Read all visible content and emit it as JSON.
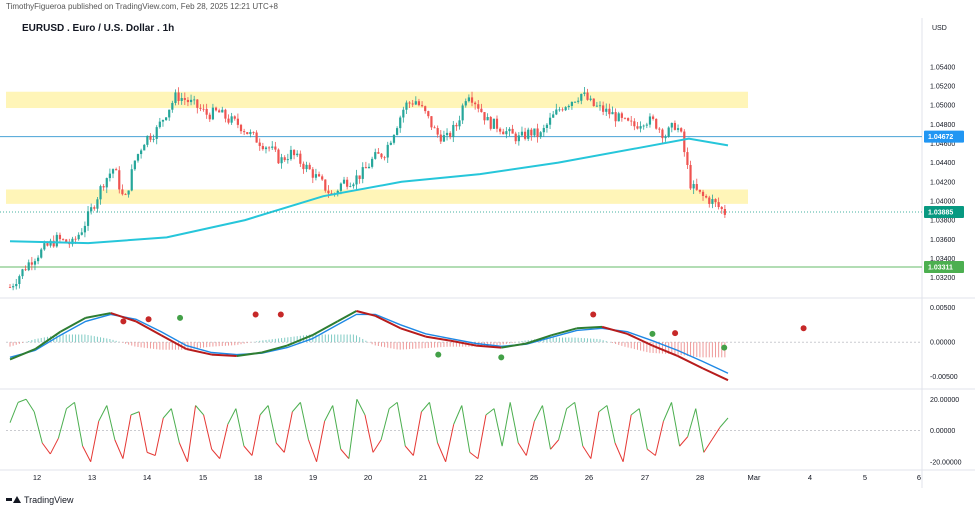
{
  "header": {
    "publisher_line": "TimothyFigueroa published on TradingView.com, Feb 28, 2025 12:21 UTC+8",
    "title": "EURUSD . Euro / U.S. Dollar . 1h"
  },
  "footer": {
    "brand": "TradingView"
  },
  "colors": {
    "up": "#26a69a",
    "down": "#ef5350",
    "zone": "#fff5b8",
    "ma": "#26c6da",
    "hline_top": "#4aa3d6",
    "hline_bottom": "#66bb6a",
    "price_badge": "#089981",
    "level_badge": "#2196f3",
    "support_badge": "#4caf50",
    "macd_fast": "#2e7d32",
    "macd_slow": "#1e88e5",
    "macd_fast_down": "#b71c1c",
    "osc_up": "#4caf50",
    "osc_down": "#e53935"
  },
  "chart_data": [
    {
      "type": "candlestick",
      "title": "EURUSD . Euro / U.S. Dollar . 1h",
      "currency_label": "USD",
      "y_ticks": [
        "1.05400",
        "1.05200",
        "1.05000",
        "1.04800",
        "1.04600",
        "1.04400",
        "1.04200",
        "1.04000",
        "1.03800",
        "1.03600",
        "1.03400",
        "1.03200"
      ],
      "ylim": [
        1.0305,
        1.0568
      ],
      "x_ticks": [
        "12",
        "13",
        "14",
        "15",
        "18",
        "19",
        "20",
        "21",
        "22",
        "25",
        "26",
        "27",
        "28",
        "Mar",
        "4",
        "5",
        "6"
      ],
      "price_labels": [
        {
          "name": "resistance_line",
          "value": "1.04672"
        },
        {
          "name": "last_price",
          "value": "1.03885"
        },
        {
          "name": "support_line",
          "value": "1.03311"
        }
      ],
      "zones": [
        {
          "name": "upper_zone",
          "from": 1.0497,
          "to": 1.0514
        },
        {
          "name": "lower_zone",
          "from": 1.0397,
          "to": 1.0412
        }
      ],
      "lines": [
        {
          "name": "resistance",
          "value": 1.04672
        },
        {
          "name": "support",
          "value": 1.03311
        }
      ],
      "close_path": [
        [
          0,
          1.031
        ],
        [
          8,
          1.0338
        ],
        [
          14,
          1.0352
        ],
        [
          18,
          1.036
        ],
        [
          24,
          1.0355
        ],
        [
          28,
          1.0372
        ],
        [
          32,
          1.0395
        ],
        [
          36,
          1.042
        ],
        [
          40,
          1.0435
        ],
        [
          44,
          1.0398
        ],
        [
          48,
          1.0442
        ],
        [
          52,
          1.0465
        ],
        [
          56,
          1.0472
        ],
        [
          60,
          1.0492
        ],
        [
          64,
          1.051
        ],
        [
          68,
          1.0505
        ],
        [
          72,
          1.0498
        ],
        [
          76,
          1.049
        ],
        [
          80,
          1.0493
        ],
        [
          84,
          1.0485
        ],
        [
          88,
          1.048
        ],
        [
          92,
          1.047
        ],
        [
          96,
          1.0462
        ],
        [
          100,
          1.0455
        ],
        [
          104,
          1.0442
        ],
        [
          108,
          1.045
        ],
        [
          112,
          1.044
        ],
        [
          116,
          1.043
        ],
        [
          120,
          1.0418
        ],
        [
          124,
          1.0405
        ],
        [
          128,
          1.042
        ],
        [
          132,
          1.0422
        ],
        [
          136,
          1.043
        ],
        [
          140,
          1.0445
        ],
        [
          144,
          1.045
        ],
        [
          148,
          1.0475
        ],
        [
          152,
          1.05
        ],
        [
          156,
          1.0505
        ],
        [
          160,
          1.049
        ],
        [
          164,
          1.047
        ],
        [
          168,
          1.0465
        ],
        [
          172,
          1.048
        ],
        [
          176,
          1.0515
        ],
        [
          180,
          1.05
        ],
        [
          184,
          1.0482
        ],
        [
          188,
          1.0478
        ],
        [
          192,
          1.047
        ],
        [
          196,
          1.0465
        ],
        [
          200,
          1.0472
        ],
        [
          204,
          1.0468
        ],
        [
          208,
          1.0485
        ],
        [
          212,
          1.0498
        ],
        [
          216,
          1.0505
        ],
        [
          220,
          1.0512
        ],
        [
          224,
          1.05
        ],
        [
          228,
          1.0495
        ],
        [
          232,
          1.049
        ],
        [
          236,
          1.0482
        ],
        [
          240,
          1.0478
        ],
        [
          244,
          1.0485
        ],
        [
          248,
          1.0482
        ],
        [
          252,
          1.0468
        ],
        [
          256,
          1.048
        ],
        [
          258,
          1.047
        ],
        [
          262,
          1.0415
        ],
        [
          266,
          1.0405
        ],
        [
          270,
          1.04
        ],
        [
          272,
          1.0395
        ],
        [
          275,
          1.0388
        ]
      ],
      "ma_path": [
        [
          0,
          1.0358
        ],
        [
          30,
          1.0356
        ],
        [
          60,
          1.0362
        ],
        [
          90,
          1.038
        ],
        [
          120,
          1.0405
        ],
        [
          150,
          1.042
        ],
        [
          180,
          1.0428
        ],
        [
          210,
          1.044
        ],
        [
          240,
          1.0455
        ],
        [
          260,
          1.0465
        ],
        [
          275,
          1.0458
        ]
      ]
    },
    {
      "type": "line",
      "title": "",
      "y_ticks": [
        "0.00500",
        "0.00000",
        "-0.00500"
      ],
      "ylim": [
        -0.0062,
        0.0058
      ],
      "series": [
        {
          "values": [
            [
              0,
              -0.0025
            ],
            [
              20,
              -0.001
            ],
            [
              40,
              0.0015
            ],
            [
              60,
              0.0035
            ],
            [
              80,
              0.0042
            ],
            [
              100,
              0.003
            ],
            [
              120,
              0.001
            ],
            [
              140,
              -0.001
            ],
            [
              160,
              -0.0018
            ],
            [
              180,
              -0.002
            ],
            [
              200,
              -0.0015
            ],
            [
              220,
              -0.0005
            ],
            [
              240,
              0.001
            ],
            [
              260,
              0.003
            ],
            [
              275,
              0.0045
            ],
            [
              290,
              0.0038
            ],
            [
              310,
              0.002
            ],
            [
              330,
              0.0008
            ],
            [
              350,
              0.0002
            ],
            [
              370,
              -0.0005
            ],
            [
              390,
              -0.0008
            ],
            [
              410,
              -0.0002
            ],
            [
              430,
              0.001
            ],
            [
              450,
              0.002
            ],
            [
              470,
              0.0022
            ],
            [
              490,
              0.0012
            ],
            [
              510,
              -0.0005
            ],
            [
              530,
              -0.002
            ],
            [
              550,
              -0.0038
            ],
            [
              570,
              -0.0055
            ]
          ]
        },
        {
          "values": [
            [
              0,
              -0.0022
            ],
            [
              20,
              -0.0012
            ],
            [
              40,
              0.001
            ],
            [
              60,
              0.003
            ],
            [
              80,
              0.004
            ],
            [
              100,
              0.0033
            ],
            [
              120,
              0.0015
            ],
            [
              140,
              -0.0005
            ],
            [
              160,
              -0.0015
            ],
            [
              180,
              -0.0018
            ],
            [
              200,
              -0.0016
            ],
            [
              220,
              -0.0008
            ],
            [
              240,
              0.0005
            ],
            [
              260,
              0.0025
            ],
            [
              275,
              0.004
            ],
            [
              290,
              0.004
            ],
            [
              310,
              0.0025
            ],
            [
              330,
              0.0012
            ],
            [
              350,
              0.0005
            ],
            [
              370,
              -0.0002
            ],
            [
              390,
              -0.0006
            ],
            [
              410,
              -0.0003
            ],
            [
              430,
              0.0007
            ],
            [
              450,
              0.0017
            ],
            [
              470,
              0.002
            ],
            [
              490,
              0.0015
            ],
            [
              510,
              0.0002
            ],
            [
              530,
              -0.0012
            ],
            [
              550,
              -0.0028
            ],
            [
              570,
              -0.0045
            ]
          ]
        }
      ],
      "markers": [
        {
          "x": 90,
          "value": 0.003,
          "kind": "down"
        },
        {
          "x": 110,
          "value": 0.0033,
          "kind": "down"
        },
        {
          "x": 135,
          "value": 0.0035,
          "kind": "up"
        },
        {
          "x": 195,
          "value": 0.004,
          "kind": "down"
        },
        {
          "x": 215,
          "value": 0.004,
          "kind": "down"
        },
        {
          "x": 340,
          "value": -0.0018,
          "kind": "up"
        },
        {
          "x": 390,
          "value": -0.0022,
          "kind": "up"
        },
        {
          "x": 463,
          "value": 0.004,
          "kind": "down"
        },
        {
          "x": 510,
          "value": 0.0012,
          "kind": "up"
        },
        {
          "x": 528,
          "value": 0.0013,
          "kind": "down"
        },
        {
          "x": 567,
          "value": -0.0008,
          "kind": "up"
        },
        {
          "x": 630,
          "value": 0.002,
          "kind": "down"
        }
      ]
    },
    {
      "type": "line",
      "title": "",
      "y_ticks": [
        "20.00000",
        "0.00000",
        "-20.00000"
      ],
      "ylim": [
        -24,
        24
      ],
      "series": [
        {
          "values": [
            [
              0,
              5
            ],
            [
              8,
              18
            ],
            [
              16,
              20
            ],
            [
              24,
              12
            ],
            [
              32,
              -8
            ],
            [
              40,
              -15
            ],
            [
              48,
              -5
            ],
            [
              56,
              14
            ],
            [
              64,
              18
            ],
            [
              72,
              -10
            ],
            [
              80,
              -20
            ],
            [
              88,
              6
            ],
            [
              96,
              16
            ],
            [
              104,
              -6
            ],
            [
              112,
              -18
            ],
            [
              120,
              10
            ],
            [
              128,
              12
            ],
            [
              136,
              -14
            ],
            [
              144,
              -16
            ],
            [
              152,
              8
            ],
            [
              160,
              14
            ],
            [
              168,
              -8
            ],
            [
              176,
              -20
            ],
            [
              184,
              16
            ],
            [
              192,
              10
            ],
            [
              200,
              -12
            ],
            [
              208,
              -18
            ],
            [
              216,
              4
            ],
            [
              224,
              14
            ],
            [
              232,
              -10
            ],
            [
              240,
              -16
            ],
            [
              248,
              10
            ],
            [
              256,
              16
            ],
            [
              264,
              -8
            ],
            [
              272,
              -14
            ],
            [
              280,
              12
            ],
            [
              288,
              18
            ],
            [
              296,
              -6
            ],
            [
              304,
              -20
            ],
            [
              312,
              6
            ],
            [
              320,
              16
            ],
            [
              328,
              -12
            ],
            [
              336,
              -18
            ],
            [
              344,
              20
            ],
            [
              352,
              10
            ],
            [
              360,
              -14
            ],
            [
              368,
              -6
            ],
            [
              376,
              14
            ],
            [
              384,
              18
            ],
            [
              392,
              -10
            ],
            [
              400,
              -16
            ],
            [
              408,
              12
            ],
            [
              416,
              18
            ],
            [
              424,
              -8
            ],
            [
              432,
              -20
            ],
            [
              440,
              4
            ],
            [
              448,
              16
            ],
            [
              456,
              -14
            ],
            [
              464,
              -18
            ],
            [
              472,
              10
            ],
            [
              480,
              14
            ],
            [
              488,
              -10
            ],
            [
              496,
              18
            ],
            [
              504,
              -8
            ],
            [
              512,
              -16
            ],
            [
              520,
              6
            ],
            [
              528,
              16
            ],
            [
              536,
              -12
            ],
            [
              544,
              -6
            ],
            [
              552,
              14
            ],
            [
              560,
              18
            ],
            [
              568,
              -10
            ],
            [
              576,
              -18
            ],
            [
              584,
              12
            ],
            [
              592,
              16
            ],
            [
              600,
              -8
            ],
            [
              608,
              -20
            ],
            [
              616,
              10
            ],
            [
              624,
              14
            ],
            [
              632,
              -12
            ],
            [
              640,
              -16
            ],
            [
              648,
              6
            ],
            [
              656,
              18
            ],
            [
              664,
              -10
            ],
            [
              672,
              -4
            ],
            [
              680,
              14
            ],
            [
              688,
              -14
            ],
            [
              696,
              -6
            ],
            [
              704,
              2
            ],
            [
              712,
              8
            ]
          ]
        }
      ]
    }
  ]
}
